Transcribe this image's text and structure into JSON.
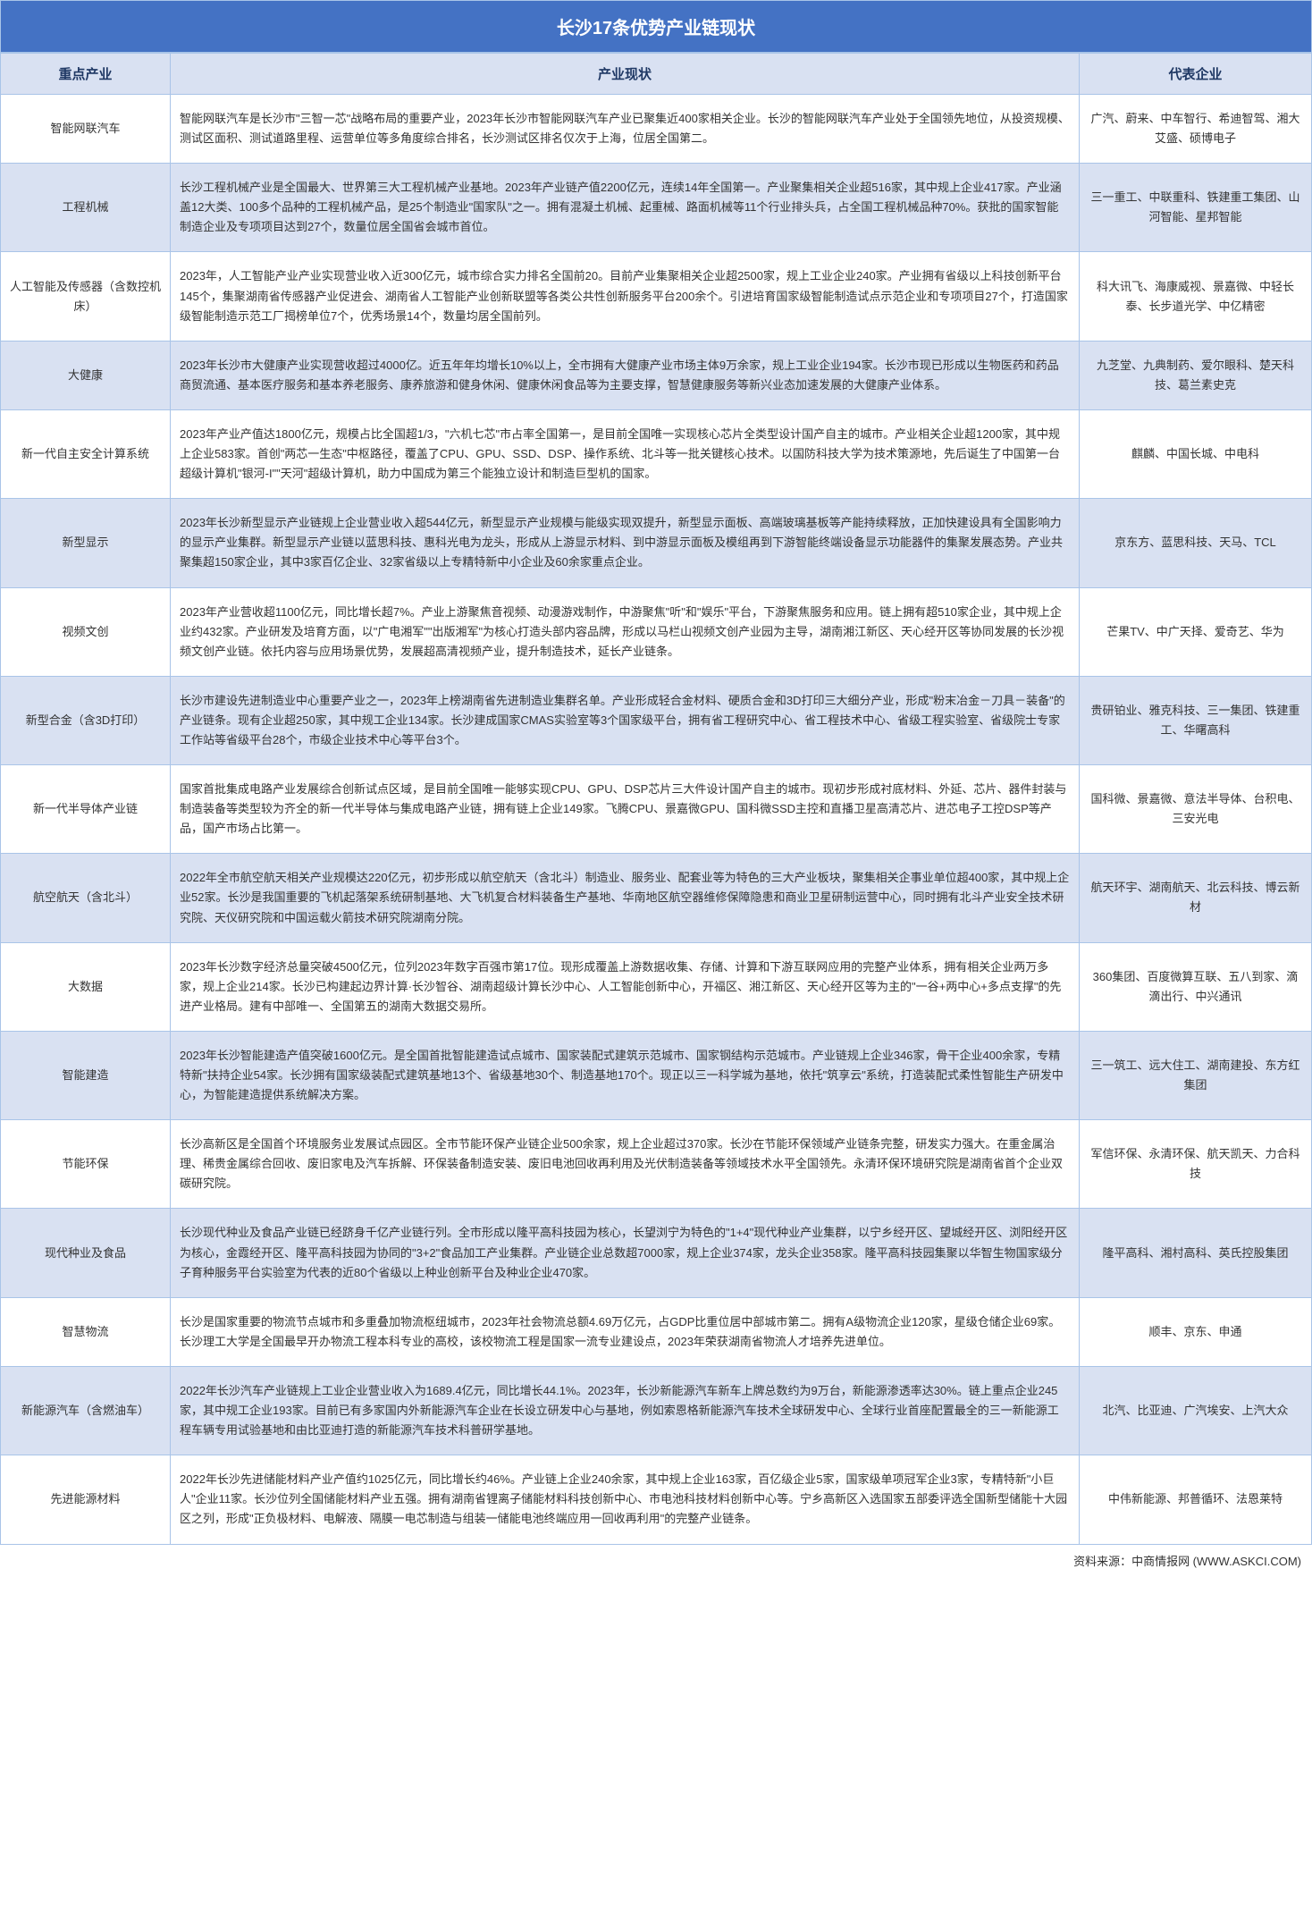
{
  "title": "长沙17条优势产业链现状",
  "headers": {
    "industry": "重点产业",
    "status": "产业现状",
    "company": "代表企业"
  },
  "rows": [
    {
      "industry": "智能网联汽车",
      "status": "智能网联汽车是长沙市\"三智一芯\"战略布局的重要产业，2023年长沙市智能网联汽车产业已聚集近400家相关企业。长沙的智能网联汽车产业处于全国领先地位，从投资规模、测试区面积、测试道路里程、运营单位等多角度综合排名，长沙测试区排名仅次于上海，位居全国第二。",
      "company": "广汽、蔚来、中车智行、希迪智驾、湘大艾盛、硕博电子"
    },
    {
      "industry": "工程机械",
      "status": "长沙工程机械产业是全国最大、世界第三大工程机械产业基地。2023年产业链产值2200亿元，连续14年全国第一。产业聚集相关企业超516家，其中规上企业417家。产业涵盖12大类、100多个品种的工程机械产品，是25个制造业\"国家队\"之一。拥有混凝土机械、起重械、路面机械等11个行业排头兵，占全国工程机械品种70%。获批的国家智能制造企业及专项项目达到27个，数量位居全国省会城市首位。",
      "company": "三一重工、中联重科、铁建重工集团、山河智能、星邦智能"
    },
    {
      "industry": "人工智能及传感器（含数控机床）",
      "status": "2023年，人工智能产业产业实现营业收入近300亿元，城市综合实力排名全国前20。目前产业集聚相关企业超2500家，规上工业企业240家。产业拥有省级以上科技创新平台145个，集聚湖南省传感器产业促进会、湖南省人工智能产业创新联盟等各类公共性创新服务平台200余个。引进培育国家级智能制造试点示范企业和专项项目27个，打造国家级智能制造示范工厂揭榜单位7个，优秀场景14个，数量均居全国前列。",
      "company": "科大讯飞、海康威视、景嘉微、中轻长泰、长步道光学、中亿精密"
    },
    {
      "industry": "大健康",
      "status": "2023年长沙市大健康产业实现营收超过4000亿。近五年年均增长10%以上，全市拥有大健康产业市场主体9万余家，规上工业企业194家。长沙市现已形成以生物医药和药品商贸流通、基本医疗服务和基本养老服务、康养旅游和健身休闲、健康休闲食品等为主要支撑，智慧健康服务等新兴业态加速发展的大健康产业体系。",
      "company": "九芝堂、九典制药、爱尔眼科、楚天科技、葛兰素史克"
    },
    {
      "industry": "新一代自主安全计算系统",
      "status": "2023年产业产值达1800亿元，规模占比全国超1/3，\"六机七芯\"市占率全国第一，是目前全国唯一实现核心芯片全类型设计国产自主的城市。产业相关企业超1200家，其中规上企业583家。首创\"两芯一生态\"中枢路径，覆盖了CPU、GPU、SSD、DSP、操作系统、北斗等一批关键核心技术。以国防科技大学为技术策源地，先后诞生了中国第一台超级计算机\"银河-I\"\"天河\"超级计算机，助力中国成为第三个能独立设计和制造巨型机的国家。",
      "company": "麒麟、中国长城、中电科"
    },
    {
      "industry": "新型显示",
      "status": "2023年长沙新型显示产业链规上企业营业收入超544亿元，新型显示产业规模与能级实现双提升，新型显示面板、高端玻璃基板等产能持续释放，正加快建设具有全国影响力的显示产业集群。新型显示产业链以蓝思科技、惠科光电为龙头，形成从上游显示材料、到中游显示面板及模组再到下游智能终端设备显示功能器件的集聚发展态势。产业共聚集超150家企业，其中3家百亿企业、32家省级以上专精特新中小企业及60余家重点企业。",
      "company": "京东方、蓝思科技、天马、TCL"
    },
    {
      "industry": "视频文创",
      "status": "2023年产业营收超1100亿元，同比增长超7%。产业上游聚焦音视频、动漫游戏制作，中游聚焦\"听\"和\"娱乐\"平台，下游聚焦服务和应用。链上拥有超510家企业，其中规上企业约432家。产业研发及培育方面，以\"广电湘军\"\"出版湘军\"为核心打造头部内容品牌，形成以马栏山视频文创产业园为主导，湖南湘江新区、天心经开区等协同发展的长沙视频文创产业链。依托内容与应用场景优势，发展超高清视频产业，提升制造技术，延长产业链条。",
      "company": "芒果TV、中广天择、爱奇艺、华为"
    },
    {
      "industry": "新型合金（含3D打印）",
      "status": "长沙市建设先进制造业中心重要产业之一，2023年上榜湖南省先进制造业集群名单。产业形成轻合金材料、硬质合金和3D打印三大细分产业，形成\"粉末冶金－刀具－装备\"的产业链条。现有企业超250家，其中规工企业134家。长沙建成国家CMAS实验室等3个国家级平台，拥有省工程研究中心、省工程技术中心、省级工程实验室、省级院士专家工作站等省级平台28个，市级企业技术中心等平台3个。",
      "company": "贵研铂业、雅克科技、三一集团、铁建重工、华曙高科"
    },
    {
      "industry": "新一代半导体产业链",
      "status": "国家首批集成电路产业发展综合创新试点区域，是目前全国唯一能够实现CPU、GPU、DSP芯片三大件设计国产自主的城市。现初步形成衬底材料、外延、芯片、器件封装与制造装备等类型较为齐全的新一代半导体与集成电路产业链，拥有链上企业149家。飞腾CPU、景嘉微GPU、国科微SSD主控和直播卫星高清芯片、进芯电子工控DSP等产品，国产市场占比第一。",
      "company": "国科微、景嘉微、意法半导体、台积电、三安光电"
    },
    {
      "industry": "航空航天（含北斗）",
      "status": "2022年全市航空航天相关产业规模达220亿元，初步形成以航空航天（含北斗）制造业、服务业、配套业等为特色的三大产业板块，聚集相关企事业单位超400家，其中规上企业52家。长沙是我国重要的飞机起落架系统研制基地、大飞机复合材料装备生产基地、华南地区航空器维修保障隐患和商业卫星研制运营中心，同时拥有北斗产业安全技术研究院、天仪研究院和中国运载火箭技术研究院湖南分院。",
      "company": "航天环宇、湖南航天、北云科技、博云新材"
    },
    {
      "industry": "大数据",
      "status": "2023年长沙数字经济总量突破4500亿元，位列2023年数字百强市第17位。现形成覆盖上游数据收集、存储、计算和下游互联网应用的完整产业体系，拥有相关企业两万多家，规上企业214家。长沙已构建起边界计算·长沙智谷、湖南超级计算长沙中心、人工智能创新中心，开福区、湘江新区、天心经开区等为主的\"一谷+两中心+多点支撑\"的先进产业格局。建有中部唯一、全国第五的湖南大数据交易所。",
      "company": "360集团、百度微算互联、五八到家、滴滴出行、中兴通讯"
    },
    {
      "industry": "智能建造",
      "status": "2023年长沙智能建造产值突破1600亿元。是全国首批智能建造试点城市、国家装配式建筑示范城市、国家钢结构示范城市。产业链规上企业346家，骨干企业400余家，专精特新\"扶持企业54家。长沙拥有国家级装配式建筑基地13个、省级基地30个、制造基地170个。现正以三一科学城为基地，依托\"筑享云\"系统，打造装配式柔性智能生产研发中心，为智能建造提供系统解决方案。",
      "company": "三一筑工、远大住工、湖南建投、东方红集团"
    },
    {
      "industry": "节能环保",
      "status": "长沙高新区是全国首个环境服务业发展试点园区。全市节能环保产业链企业500余家，规上企业超过370家。长沙在节能环保领域产业链条完整，研发实力强大。在重金属治理、稀贵金属综合回收、废旧家电及汽车拆解、环保装备制造安装、废旧电池回收再利用及光伏制造装备等领域技术水平全国领先。永清环保环境研究院是湖南省首个企业双碳研究院。",
      "company": "军信环保、永清环保、航天凯天、力合科技"
    },
    {
      "industry": "现代种业及食品",
      "status": "长沙现代种业及食品产业链已经跻身千亿产业链行列。全市形成以隆平高科技园为核心，长望浏宁为特色的\"1+4\"现代种业产业集群，以宁乡经开区、望城经开区、浏阳经开区为核心，金霞经开区、隆平高科技园为协同的\"3+2\"食品加工产业集群。产业链企业总数超7000家，规上企业374家，龙头企业358家。隆平高科技园集聚以华智生物国家级分子育种服务平台实验室为代表的近80个省级以上种业创新平台及种业企业470家。",
      "company": "隆平高科、湘村高科、英氏控股集团"
    },
    {
      "industry": "智慧物流",
      "status": "长沙是国家重要的物流节点城市和多重叠加物流枢纽城市，2023年社会物流总额4.69万亿元，占GDP比重位居中部城市第二。拥有A级物流企业120家，星级仓储企业69家。长沙理工大学是全国最早开办物流工程本科专业的高校，该校物流工程是国家一流专业建设点，2023年荣获湖南省物流人才培养先进单位。",
      "company": "顺丰、京东、申通"
    },
    {
      "industry": "新能源汽车（含燃油车）",
      "status": "2022年长沙汽车产业链规上工业企业营业收入为1689.4亿元，同比增长44.1%。2023年，长沙新能源汽车新车上牌总数约为9万台，新能源渗透率达30%。链上重点企业245家，其中规工企业193家。目前已有多家国内外新能源汽车企业在长设立研发中心与基地，例如索恩格新能源汽车技术全球研发中心、全球行业首座配置最全的三一新能源工程车辆专用试验基地和由比亚迪打造的新能源汽车技术科普研学基地。",
      "company": "北汽、比亚迪、广汽埃安、上汽大众"
    },
    {
      "industry": "先进能源材料",
      "status": "2022年长沙先进储能材料产业产值约1025亿元，同比增长约46%。产业链上企业240余家，其中规上企业163家，百亿级企业5家，国家级单项冠军企业3家，专精特新\"小巨人\"企业11家。长沙位列全国储能材料产业五强。拥有湖南省锂离子储能材料科技创新中心、市电池科技材料创新中心等。宁乡高新区入选国家五部委评选全国新型储能十大园区之列，形成\"正负极材料、电解液、隔膜一电芯制造与组装一储能电池终端应用一回收再利用\"的完整产业链条。",
      "company": "中伟新能源、邦普循环、法恩莱特"
    }
  ],
  "source": "资料来源：中商情报网 (WWW.ASKCI.COM)",
  "colors": {
    "header_bg": "#4472c4",
    "header_text": "#ffffff",
    "th_bg": "#d9e1f2",
    "th_text": "#1f3864",
    "even_bg": "#d9e1f2",
    "odd_bg": "#ffffff",
    "border": "#a9c4e8",
    "text": "#333333"
  }
}
